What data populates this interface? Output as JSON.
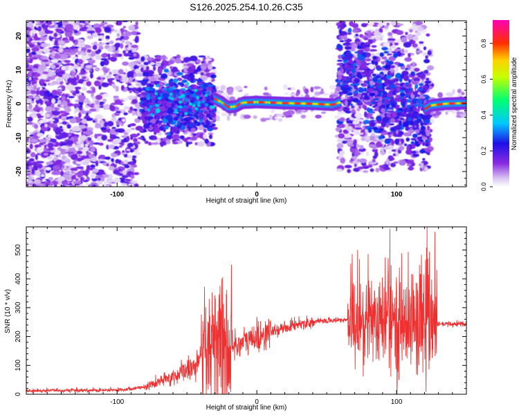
{
  "figure": {
    "title": "S126.2025.254.10.26.C35"
  },
  "chart_data": [
    {
      "type": "heatmap",
      "name": "spectrogram",
      "xlabel": "Height of straight line (km)",
      "ylabel": "Frequency (Hz)",
      "xlim": [
        -165,
        150
      ],
      "ylim": [
        -24.5,
        24.5
      ],
      "xticks": [
        "-100",
        "0",
        "100"
      ],
      "xtick_values": [
        -100,
        0,
        100
      ],
      "yticks": [
        "20",
        "10",
        "0",
        "-10",
        "-20"
      ],
      "ytick_values": [
        20,
        10,
        0,
        -10,
        -20
      ],
      "colorbar": {
        "label": "Normalized spectral amplitude",
        "range": [
          0,
          0.93
        ],
        "ticks": [
          "0.0",
          "0.2",
          "0.4",
          "0.6",
          "0.8"
        ],
        "tick_values": [
          0,
          0.2,
          0.4,
          0.6,
          0.8
        ],
        "colors": [
          "#ffffff",
          "#d9c6f2",
          "#8a2be2",
          "#1e10e6",
          "#00c8ff",
          "#00ff70",
          "#c8ff00",
          "#ff3000",
          "#ff00b4"
        ]
      },
      "ridge": [
        {
          "x": -30,
          "freq": 1.5
        },
        {
          "x": -25,
          "freq": 0.5
        },
        {
          "x": -20,
          "freq": -1.0
        },
        {
          "x": -15,
          "freq": -0.8
        },
        {
          "x": -10,
          "freq": 0.3
        },
        {
          "x": 0,
          "freq": 0.5
        },
        {
          "x": 20,
          "freq": 0.2
        },
        {
          "x": 40,
          "freq": 0.0
        },
        {
          "x": 55,
          "freq": -0.3
        },
        {
          "x": 60,
          "freq": 0.5
        }
      ],
      "ridge_right": [
        {
          "x": 121,
          "freq": -1.5
        },
        {
          "x": 125,
          "freq": -0.5
        },
        {
          "x": 135,
          "freq": 0.0
        },
        {
          "x": 150,
          "freq": 0.2
        }
      ]
    },
    {
      "type": "line",
      "name": "snr",
      "xlabel": "Height of straight line (km)",
      "ylabel": "SNR (10 * v/v)",
      "xlim": [
        -165,
        150
      ],
      "ylim": [
        0,
        580
      ],
      "xticks": [
        "-100",
        "0",
        "100"
      ],
      "xtick_values": [
        -100,
        0,
        100
      ],
      "yticks": [
        "500",
        "400",
        "300",
        "200",
        "100",
        "0"
      ],
      "ytick_values": [
        500,
        400,
        300,
        200,
        100,
        0
      ],
      "series": [
        {
          "name": "SNR",
          "color": "#ef3030",
          "trend": [
            {
              "x": -165,
              "y": 12
            },
            {
              "x": -100,
              "y": 14
            },
            {
              "x": -80,
              "y": 25
            },
            {
              "x": -60,
              "y": 60
            },
            {
              "x": -40,
              "y": 110
            },
            {
              "x": -25,
              "y": 160
            },
            {
              "x": -10,
              "y": 180
            },
            {
              "x": 10,
              "y": 215
            },
            {
              "x": 30,
              "y": 245
            },
            {
              "x": 50,
              "y": 255
            },
            {
              "x": 63,
              "y": 258
            },
            {
              "x": 66,
              "y": 255
            },
            {
              "x": 128,
              "y": 245
            },
            {
              "x": 131,
              "y": 242
            },
            {
              "x": 150,
              "y": 245
            }
          ],
          "peak_max": 580
        }
      ]
    }
  ]
}
